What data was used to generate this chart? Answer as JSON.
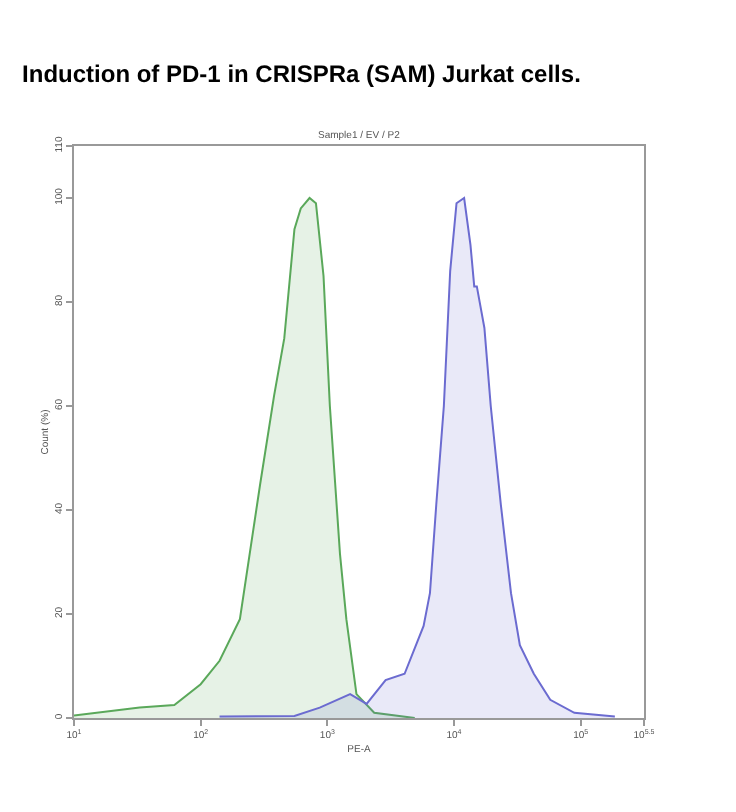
{
  "chart_data": {
    "type": "area",
    "title": "Induction of PD-1 in CRISPRa (SAM) Jurkat cells.",
    "subtitle": "Sample1 / EV / P2",
    "xlabel": "PE-A",
    "ylabel": "Count (%)",
    "log": "x",
    "xlim": [
      10,
      316228
    ],
    "xticks": [
      {
        "value": 10,
        "label": "10$^{1}$"
      },
      {
        "value": 100,
        "label": "10$^{2}$"
      },
      {
        "value": 1000,
        "label": "10$^{3}$"
      },
      {
        "value": 10000,
        "label": "10$^{4}$"
      },
      {
        "value": 100000,
        "label": "10$^{5}$"
      },
      {
        "value": 316228,
        "label": "10$^{5.5}$"
      }
    ],
    "ylim": [
      0,
      110
    ],
    "yticks": [
      0,
      20,
      40,
      60,
      80,
      100,
      110
    ],
    "series": [
      {
        "color": "#5aa85a",
        "x": [
          10,
          33,
          62,
          100,
          141,
          204,
          295,
          380,
          457,
          550,
          617,
          724,
          813,
          933,
          1047,
          1259,
          1413,
          1698,
          2344,
          4898
        ],
        "values": [
          0.5,
          2,
          2.5,
          6.5,
          11,
          19,
          45,
          62,
          73,
          94,
          98,
          100,
          99,
          85,
          60,
          31.5,
          19,
          4.6,
          1,
          0
        ]
      },
      {
        "color": "#6b6bd0",
        "x": [
          141,
          550,
          871,
          1514,
          2042,
          2884,
          4074,
          5754,
          6457,
          7244,
          8318,
          9333,
          10470,
          12020,
          13490,
          14450,
          15140,
          17380,
          19500,
          23440,
          28180,
          33110,
          42660,
          57540,
          89130,
          186200
        ],
        "values": [
          0.3,
          0.4,
          2,
          4.6,
          2.7,
          7.3,
          8.5,
          17.7,
          24,
          41,
          60,
          86,
          99,
          100,
          91,
          83,
          83,
          75,
          60,
          41,
          24,
          14,
          8.5,
          3.5,
          1,
          0.3
        ]
      }
    ]
  }
}
